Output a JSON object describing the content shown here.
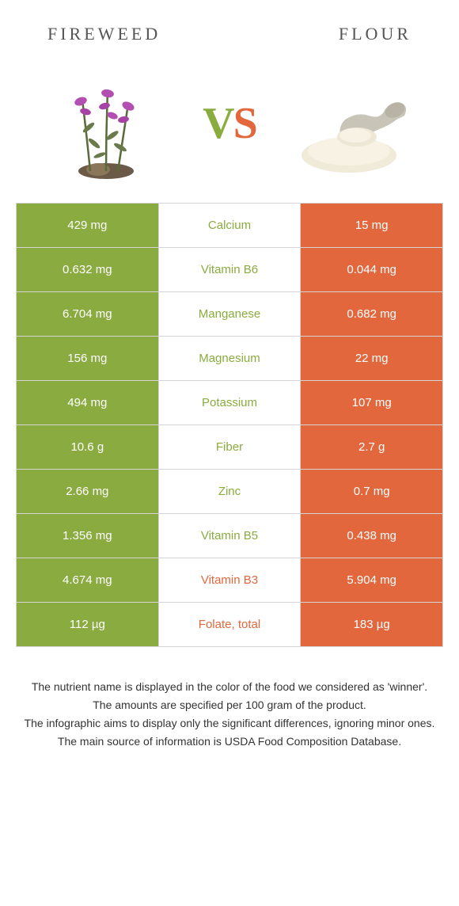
{
  "colors": {
    "left_bg": "#8aab3f",
    "right_bg": "#e2673d",
    "left_text": "#8aab3f",
    "right_text": "#e2673d",
    "border": "#d5d5d5",
    "title_color": "#555555"
  },
  "food_left": {
    "title": "FIREWEED"
  },
  "food_right": {
    "title": "FLOUR"
  },
  "vs": {
    "v": "V",
    "s": "S"
  },
  "rows": [
    {
      "left": "429 mg",
      "label": "Calcium",
      "right": "15 mg",
      "winner": "left"
    },
    {
      "left": "0.632 mg",
      "label": "Vitamin B6",
      "right": "0.044 mg",
      "winner": "left"
    },
    {
      "left": "6.704 mg",
      "label": "Manganese",
      "right": "0.682 mg",
      "winner": "left"
    },
    {
      "left": "156 mg",
      "label": "Magnesium",
      "right": "22 mg",
      "winner": "left"
    },
    {
      "left": "494 mg",
      "label": "Potassium",
      "right": "107 mg",
      "winner": "left"
    },
    {
      "left": "10.6 g",
      "label": "Fiber",
      "right": "2.7 g",
      "winner": "left"
    },
    {
      "left": "2.66 mg",
      "label": "Zinc",
      "right": "0.7 mg",
      "winner": "left"
    },
    {
      "left": "1.356 mg",
      "label": "Vitamin B5",
      "right": "0.438 mg",
      "winner": "left"
    },
    {
      "left": "4.674 mg",
      "label": "Vitamin B3",
      "right": "5.904 mg",
      "winner": "right"
    },
    {
      "left": "112 µg",
      "label": "Folate, total",
      "right": "183 µg",
      "winner": "right"
    }
  ],
  "footer": {
    "line1": "The nutrient name is displayed in the color of the food we considered as 'winner'.",
    "line2": "The amounts are specified per 100 gram of the product.",
    "line3": "The infographic aims to display only the significant differences, ignoring minor ones.",
    "line4": "The main source of information is USDA Food Composition Database."
  }
}
